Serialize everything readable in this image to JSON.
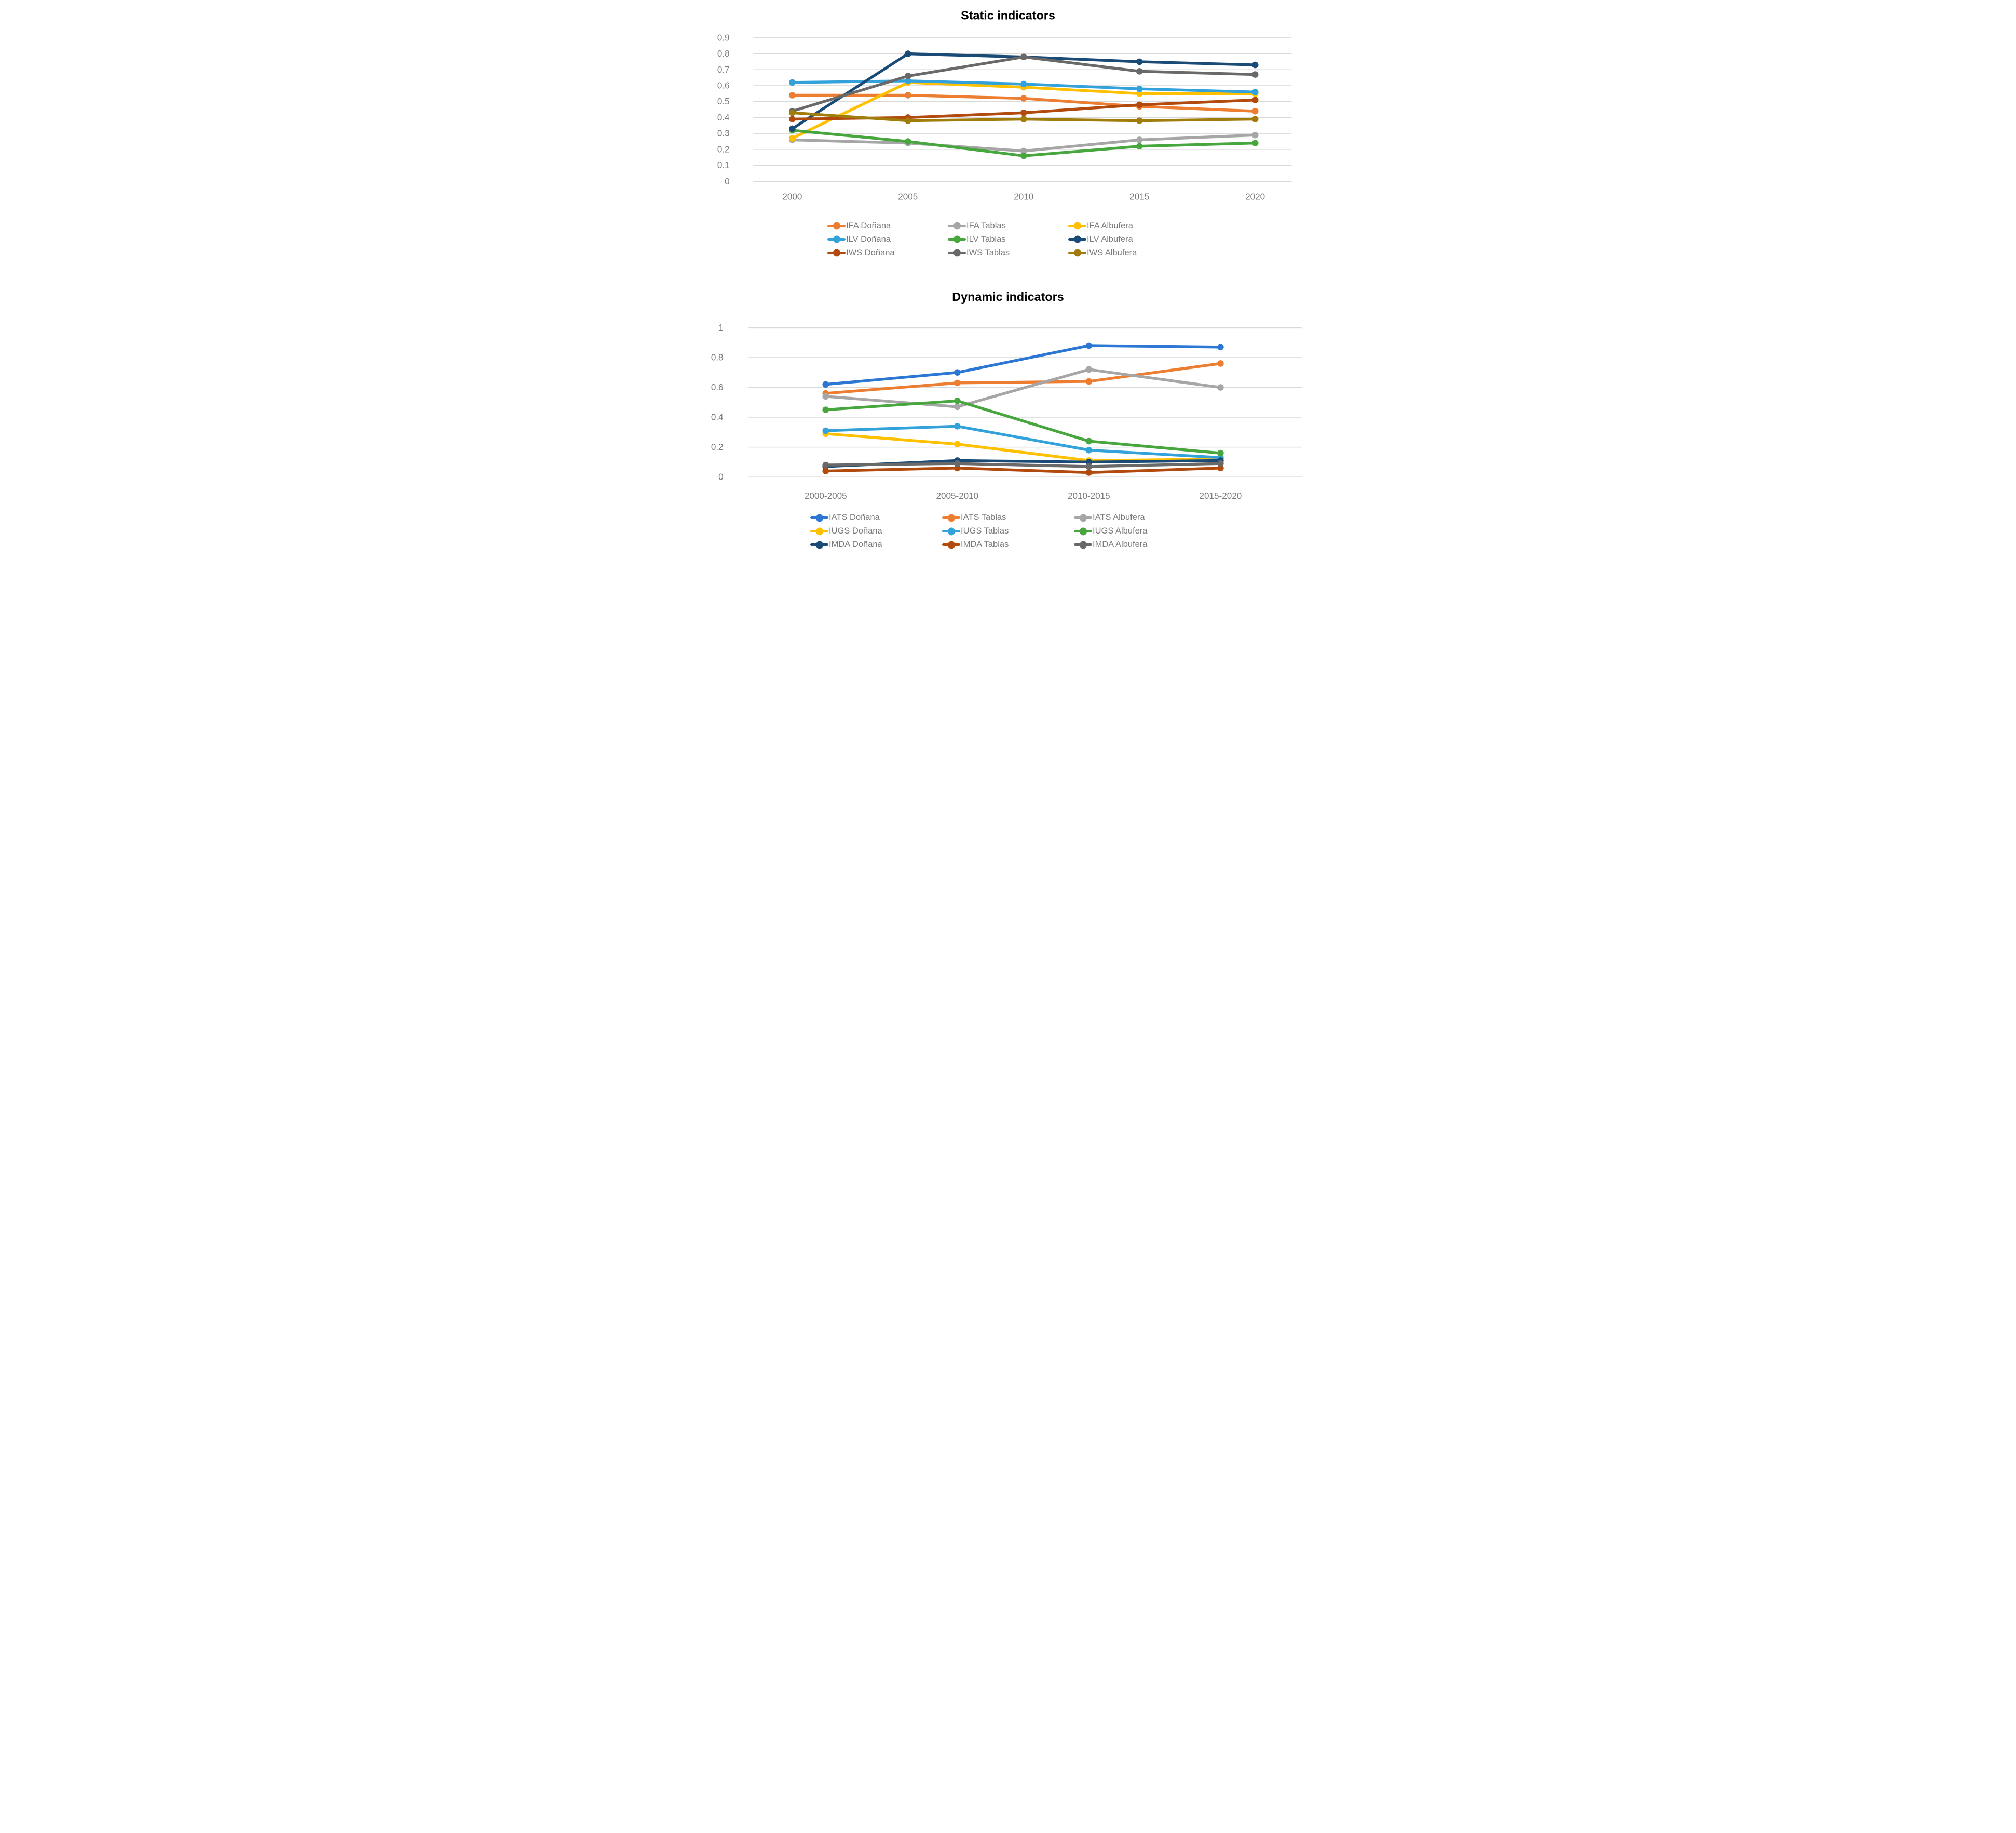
{
  "chart_data": [
    {
      "type": "line",
      "title": "Static indicators",
      "x_categories": [
        "2000",
        "2005",
        "2010",
        "2015",
        "2020"
      ],
      "y_tick_values": [
        0.9,
        0.8,
        0.7,
        0.6,
        0.5,
        0.4,
        0.3,
        0.2,
        0.1,
        0
      ],
      "y_tick_labels": [
        "0.9",
        "0.8",
        "0.7",
        "0.6",
        "0.5",
        "0.4",
        "0.3",
        "0.2",
        "0.1",
        "0"
      ],
      "ylim": [
        0,
        0.9
      ],
      "grid": "horizontal",
      "legend_position": "bottom",
      "legend_columns": 3,
      "series": [
        {
          "name": "IFA Doñana",
          "color": "#ED7D31",
          "values": [
            0.54,
            0.54,
            0.52,
            0.47,
            0.44
          ]
        },
        {
          "name": "IFA Tablas",
          "color": "#A6A6A6",
          "values": [
            0.26,
            0.24,
            0.19,
            0.26,
            0.29
          ]
        },
        {
          "name": "IFA Albufera",
          "color": "#FFC000",
          "values": [
            0.27,
            0.62,
            0.59,
            0.55,
            0.55
          ]
        },
        {
          "name": "ILV Doñana",
          "color": "#33A2DB",
          "values": [
            0.62,
            0.63,
            0.61,
            0.58,
            0.56
          ]
        },
        {
          "name": "ILV Tablas",
          "color": "#47A63E",
          "values": [
            0.32,
            0.25,
            0.16,
            0.22,
            0.24
          ]
        },
        {
          "name": "ILV Albufera",
          "color": "#1A4B76",
          "values": [
            0.33,
            0.8,
            0.78,
            0.75,
            0.73
          ]
        },
        {
          "name": "IWS Doñana",
          "color": "#B24A0D",
          "values": [
            0.39,
            0.4,
            0.43,
            0.48,
            0.51
          ]
        },
        {
          "name": "IWS Tablas",
          "color": "#696969",
          "values": [
            0.44,
            0.66,
            0.78,
            0.69,
            0.67
          ]
        },
        {
          "name": "IWS Albufera",
          "color": "#A07D0B",
          "values": [
            0.43,
            0.38,
            0.39,
            0.38,
            0.39
          ]
        }
      ]
    },
    {
      "type": "line",
      "title": "Dynamic indicators",
      "x_categories": [
        "2000-2005",
        "2005-2010",
        "2010-2015",
        "2015-2020"
      ],
      "y_tick_values": [
        1,
        0.8,
        0.6,
        0.4,
        0.2,
        0
      ],
      "y_tick_labels": [
        "1",
        "0.8",
        "0.6",
        "0.4",
        "0.2",
        "0"
      ],
      "ylim": [
        0,
        1
      ],
      "grid": "horizontal",
      "legend_position": "bottom",
      "legend_columns": 3,
      "series": [
        {
          "name": "IATS Doñana",
          "color": "#2B77D3",
          "values": [
            0.62,
            0.7,
            0.88,
            0.87
          ]
        },
        {
          "name": "IATS Tablas",
          "color": "#ED7D31",
          "values": [
            0.56,
            0.63,
            0.64,
            0.76
          ]
        },
        {
          "name": "IATS Albufera",
          "color": "#A6A6A6",
          "values": [
            0.54,
            0.47,
            0.72,
            0.6
          ]
        },
        {
          "name": "IUGS Doñana",
          "color": "#FFC000",
          "values": [
            0.29,
            0.22,
            0.11,
            0.12
          ]
        },
        {
          "name": "IUGS Tablas",
          "color": "#33A2DB",
          "values": [
            0.31,
            0.34,
            0.18,
            0.13
          ]
        },
        {
          "name": "IUGS Albufera",
          "color": "#47A63E",
          "values": [
            0.45,
            0.51,
            0.24,
            0.16
          ]
        },
        {
          "name": "IMDA Doñana",
          "color": "#1A4B76",
          "values": [
            0.07,
            0.11,
            0.1,
            0.11
          ]
        },
        {
          "name": "IMDA Tablas",
          "color": "#B24A0D",
          "values": [
            0.04,
            0.06,
            0.03,
            0.06
          ]
        },
        {
          "name": "IMDA Albufera",
          "color": "#696969",
          "values": [
            0.08,
            0.09,
            0.07,
            0.09
          ]
        }
      ]
    }
  ],
  "styles": {
    "grid_color": "#D9D9D9",
    "axis_text_color": "#7A7A7A",
    "title_color": "#000000",
    "background": "#FFFFFF"
  }
}
